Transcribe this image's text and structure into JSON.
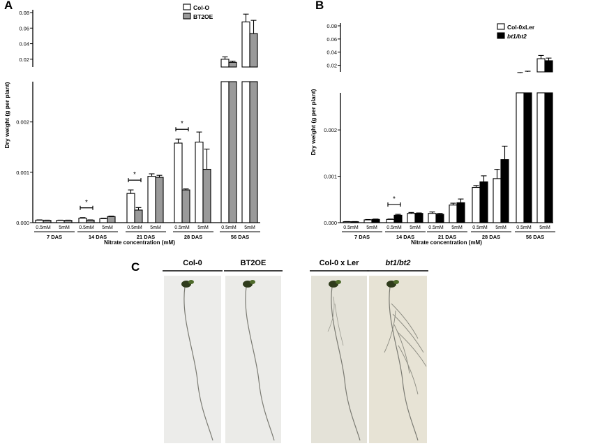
{
  "figure": {
    "letter_a": "A",
    "letter_b": "B",
    "letter_c": "C"
  },
  "chart_data": [
    {
      "panel": "A",
      "type": "bar",
      "ylabel": "Dry weight (g per plant)",
      "xlabel": "Nitrate concentration (mM)",
      "groups": [
        "7 DAS",
        "14 DAS",
        "21 DAS",
        "28 DAS",
        "56 DAS"
      ],
      "sublabels": [
        "0.5mM",
        "5mM"
      ],
      "yticks_lower": [
        "0.000",
        "0.001",
        "0.002"
      ],
      "yticks_upper": [
        "0.02",
        "0.04",
        "0.06",
        "0.08"
      ],
      "ylim_lower": [
        0,
        0.0028
      ],
      "ylim_upper": [
        0,
        0.085
      ],
      "series": [
        {
          "name": "Col-O",
          "color": "#ffffff",
          "values": [
            5e-05,
            4.5e-05,
            9e-05,
            8e-05,
            0.00058,
            0.00092,
            0.00158,
            0.0016,
            0.02,
            0.068
          ],
          "errors": [
            5e-06,
            5e-06,
            1e-05,
            1e-05,
            7e-05,
            5e-05,
            8e-05,
            0.0002,
            0.003,
            0.01
          ]
        },
        {
          "name": "BT2OE",
          "color": "#9a9a9a",
          "values": [
            4.5e-05,
            4.5e-05,
            5e-05,
            0.00012,
            0.00025,
            0.0009,
            0.00065,
            0.00106,
            0.016,
            0.053
          ],
          "errors": [
            5e-06,
            5e-06,
            5e-06,
            1e-05,
            5e-05,
            4e-05,
            2e-05,
            0.0004,
            0.0015,
            0.017
          ]
        }
      ],
      "significance": [
        {
          "group": 1,
          "sub": 0,
          "label": "*"
        },
        {
          "group": 2,
          "sub": 0,
          "label": "*"
        },
        {
          "group": 3,
          "sub": 0,
          "label": "*"
        }
      ]
    },
    {
      "panel": "B",
      "type": "bar",
      "ylabel": "Dry weight  (g per plant)",
      "xlabel": "Nitrate concentration (mM)",
      "groups": [
        "7 DAS",
        "14 DAS",
        "21 DAS",
        "28 DAS",
        "56 DAS"
      ],
      "sublabels": [
        "0.5mM",
        "5mM"
      ],
      "yticks_lower": [
        "0.000",
        "0.001",
        "0.002"
      ],
      "yticks_upper": [
        "0.02",
        "0.04",
        "0.06",
        "0.08"
      ],
      "ylim_lower": [
        0,
        0.0028
      ],
      "ylim_upper": [
        0,
        0.085
      ],
      "series": [
        {
          "name": "Col-0xLer",
          "color": "#ffffff",
          "values": [
            2e-05,
            6e-05,
            7e-05,
            0.0002,
            0.0002,
            0.00038,
            0.00076,
            0.00095,
            0.008,
            0.03
          ],
          "errors": [
            4e-06,
            8e-06,
            8e-06,
            2e-05,
            3e-05,
            4e-05,
            4e-05,
            0.0002,
            0.001,
            0.005
          ]
        },
        {
          "name": "bt1/bt2",
          "color": "#000000",
          "values": [
            2e-05,
            7e-05,
            0.00016,
            0.0002,
            0.00018,
            0.00043,
            0.00088,
            0.00136,
            0.01,
            0.027
          ],
          "errors": [
            4e-06,
            8e-06,
            2e-05,
            1e-05,
            2e-05,
            8e-05,
            0.00013,
            0.00029,
            0.001,
            0.004
          ]
        }
      ],
      "significance": [
        {
          "group": 1,
          "sub": 0,
          "label": "*"
        }
      ]
    }
  ],
  "photos": [
    {
      "label": "Col-0",
      "italic": false,
      "bg": "#ececea",
      "branching": false
    },
    {
      "label": "BT2OE",
      "italic": false,
      "bg": "#ebebe8",
      "branching": false
    },
    {
      "label": "Col-0 x Ler",
      "italic": false,
      "bg": "#e4e2d8",
      "branching": false
    },
    {
      "label": "bt1/bt2",
      "italic": true,
      "bg": "#e7e3d5",
      "branching": true
    }
  ]
}
